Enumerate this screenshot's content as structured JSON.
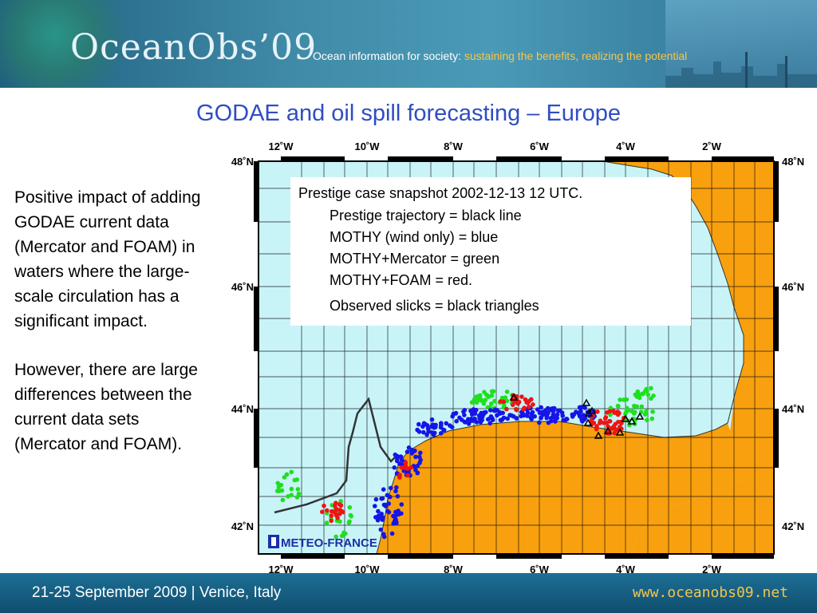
{
  "header": {
    "brand": "OceanObs’09",
    "tagline_prefix": "Ocean information for society: ",
    "tagline_highlight": "sustaining the benefits, realizing the potential"
  },
  "slide": {
    "title": "GODAE and oil spill forecasting – Europe",
    "paragraph1": "Positive impact of adding GODAE current data (Mercator and FOAM) in waters where the large-scale circulation has a significant impact.",
    "paragraph2": "However, there are large differences between the current data sets (Mercator and FOAM)."
  },
  "map": {
    "lon_labels": [
      "12˚W",
      "10˚W",
      "8˚W",
      "6˚W",
      "4˚W",
      "2˚W"
    ],
    "lat_labels": [
      "48˚N",
      "46˚N",
      "44˚N",
      "42˚N"
    ],
    "legend": {
      "line1": "Prestige case snapshot 2002-12-13 12 UTC.",
      "line2": "Prestige trajectory = black line",
      "line3": "MOTHY (wind only) = blue",
      "line4": "MOTHY+Mercator = green",
      "line5": "MOTHY+FOAM = red.",
      "line6": "Observed slicks = black triangles"
    },
    "credit": "METEO-FRANCE",
    "colors": {
      "sea": "#c8f4f8",
      "land": "#f8a00e",
      "blue": "#1515e8",
      "green": "#1ee01e",
      "red": "#ee1414"
    }
  },
  "footer": {
    "dates": "21-25 September 2009 | Venice, Italy",
    "url": "www.oceanobs09.net"
  }
}
